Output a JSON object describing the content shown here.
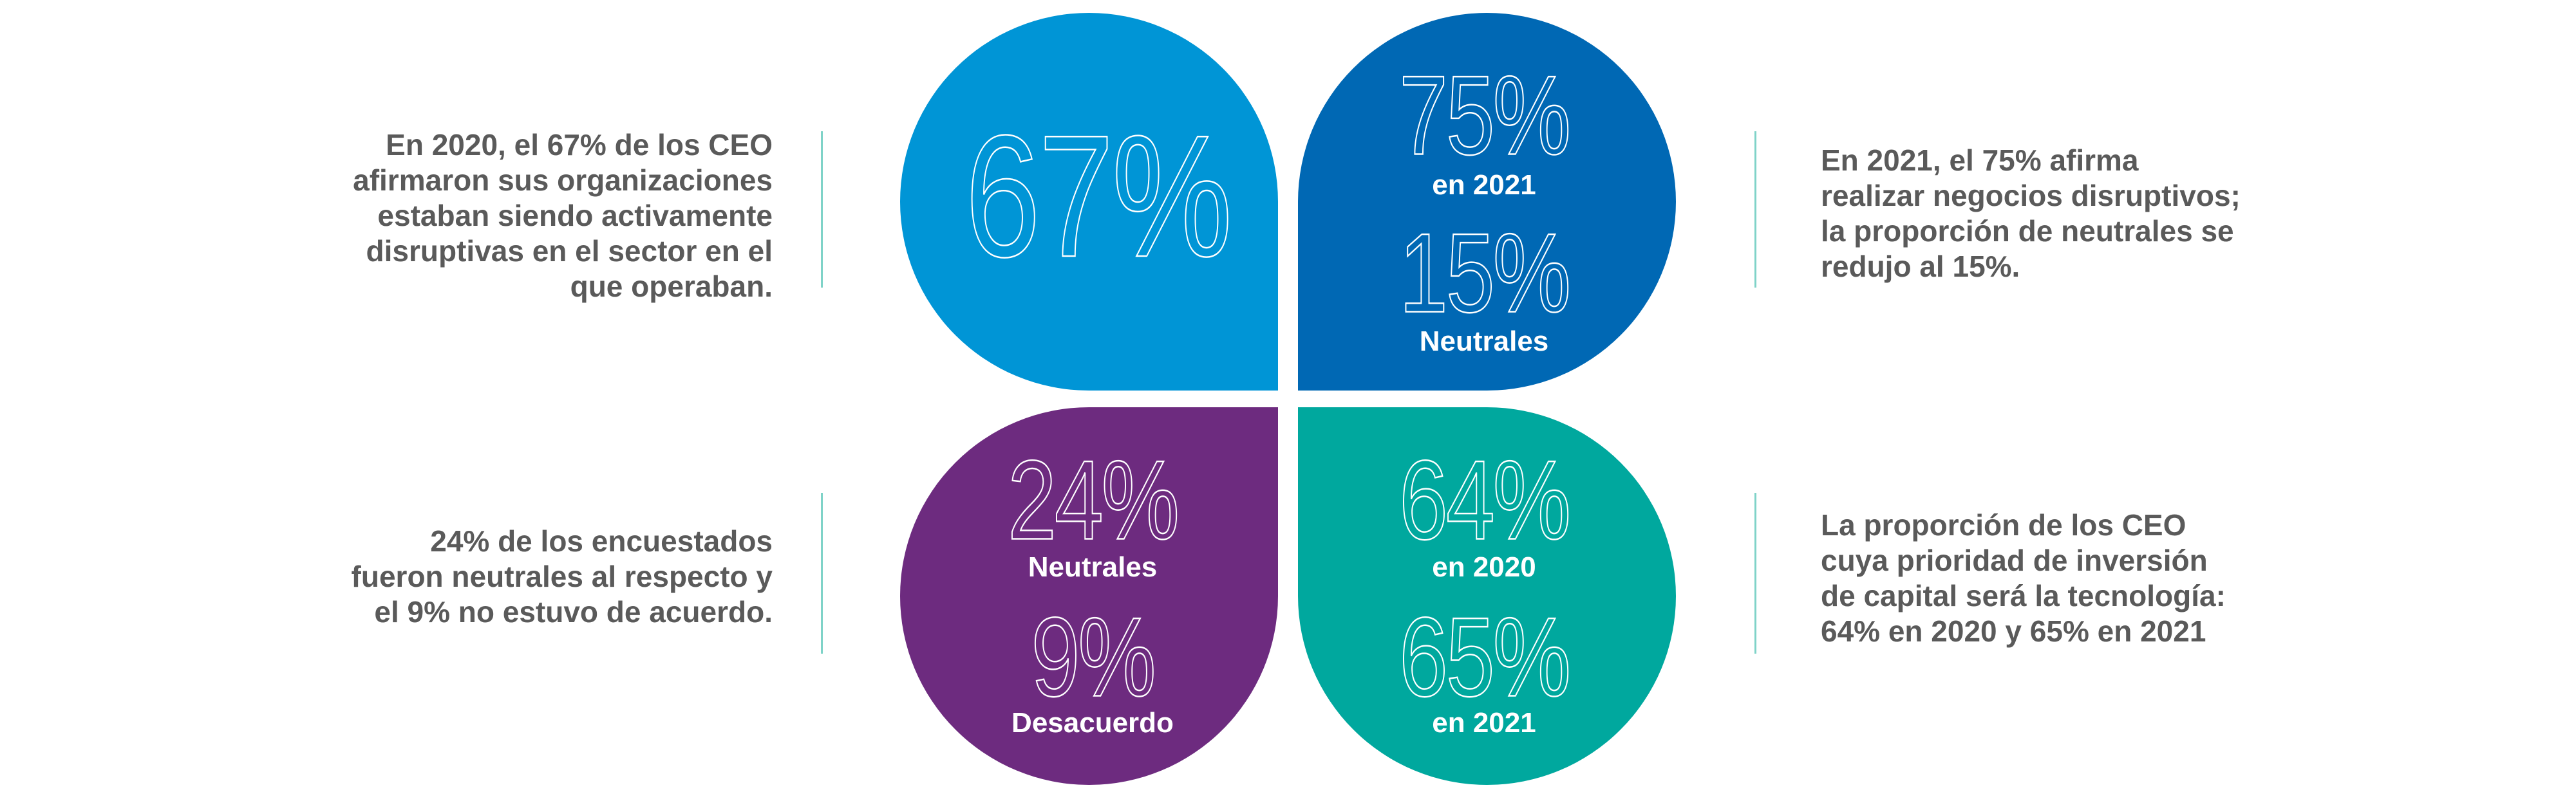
{
  "quadrants": [
    {
      "description": [
        "En 2020, el 67% de los CEO",
        "afirmaron sus organizaciones",
        "estaban siendo activamente",
        "disruptivas en el sector en el",
        "que operaban."
      ],
      "figures": [
        {
          "value": "67%"
        }
      ]
    },
    {
      "description": [
        "En 2021, el 75% afirma",
        "realizar negocios disruptivos;",
        "la proporción de neutrales se",
        "redujo al 15%."
      ],
      "figures": [
        {
          "value": "75%",
          "label": "en 2021"
        },
        {
          "value": "15%",
          "label": "Neutrales"
        }
      ]
    },
    {
      "description": [
        "24% de los encuestados",
        "fueron neutrales al respecto y",
        "el 9% no estuvo de acuerdo."
      ],
      "figures": [
        {
          "value": "24%",
          "label": "Neutrales"
        },
        {
          "value": "9%",
          "label": "Desacuerdo"
        }
      ]
    },
    {
      "description": [
        "La proporción de los CEO",
        "cuya prioridad de inversión",
        "de capital será la tecnología:",
        "64% en 2020 y 65% en 2021"
      ],
      "figures": [
        {
          "value": "64%",
          "label": "en 2020"
        },
        {
          "value": "65%",
          "label": "en 2021"
        }
      ]
    }
  ]
}
